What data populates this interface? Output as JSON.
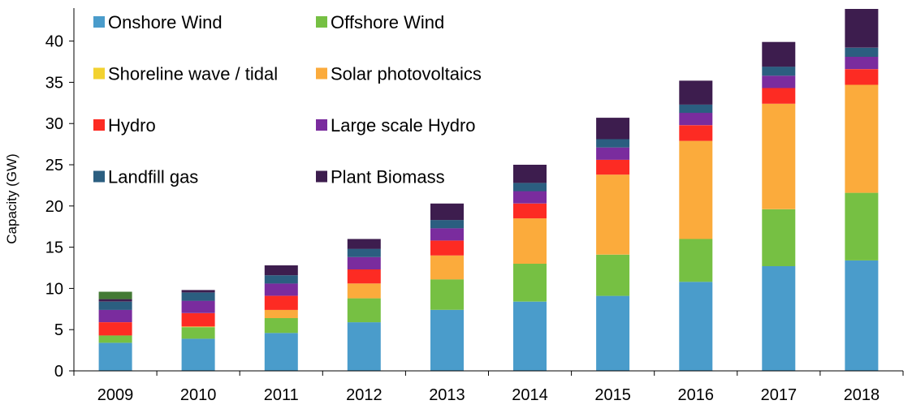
{
  "chart_data": {
    "type": "bar",
    "stacked": true,
    "ylabel": "Capacity (GW)",
    "xlabel": "",
    "ylim": [
      0,
      44
    ],
    "yticks": [
      0,
      5,
      10,
      15,
      20,
      25,
      30,
      35,
      40
    ],
    "grid": false,
    "legend_position": "top-left",
    "categories": [
      "2009",
      "2010",
      "2011",
      "2012",
      "2013",
      "2014",
      "2015",
      "2016",
      "2017",
      "2018"
    ],
    "series": [
      {
        "name": "Onshore Wind",
        "color": "#4a9ccb",
        "values": [
          3.4,
          3.9,
          4.6,
          5.9,
          7.4,
          8.4,
          9.1,
          10.8,
          12.7,
          13.4
        ]
      },
      {
        "name": "Offshore Wind",
        "color": "#76c043",
        "values": [
          0.9,
          1.4,
          1.8,
          2.9,
          3.7,
          4.6,
          5.0,
          5.2,
          6.9,
          8.2
        ]
      },
      {
        "name": "Shoreline wave / tidal",
        "color": "#f2d230",
        "values": [
          0.0,
          0.0,
          0.0,
          0.0,
          0.0,
          0.0,
          0.0,
          0.0,
          0.0,
          0.0
        ]
      },
      {
        "name": "Solar photovoltaics",
        "color": "#fbab3c",
        "values": [
          0.0,
          0.1,
          1.0,
          1.8,
          2.9,
          5.5,
          9.7,
          11.9,
          12.8,
          13.1
        ]
      },
      {
        "name": "Hydro",
        "color": "#fd2b23",
        "values": [
          1.6,
          1.6,
          1.7,
          1.7,
          1.8,
          1.8,
          1.8,
          1.9,
          1.9,
          1.9
        ]
      },
      {
        "name": "Large scale Hydro",
        "color": "#7a2c9e",
        "values": [
          1.5,
          1.5,
          1.5,
          1.5,
          1.5,
          1.5,
          1.5,
          1.5,
          1.5,
          1.5
        ]
      },
      {
        "name": "Landfill gas",
        "color": "#2b5e80",
        "values": [
          1.0,
          1.0,
          1.0,
          1.0,
          1.0,
          1.0,
          1.0,
          1.0,
          1.1,
          1.1
        ]
      },
      {
        "name": "Plant Biomass",
        "color": "#3d1d4e",
        "values": [
          0.3,
          0.3,
          1.2,
          1.2,
          2.0,
          2.2,
          2.6,
          2.9,
          3.0,
          4.7
        ]
      },
      {
        "color": "#447a35",
        "values": [
          0.9,
          0.0,
          0.0,
          0.0,
          0.0,
          0.0,
          0.0,
          0.0,
          0.0,
          0.0
        ]
      }
    ]
  }
}
